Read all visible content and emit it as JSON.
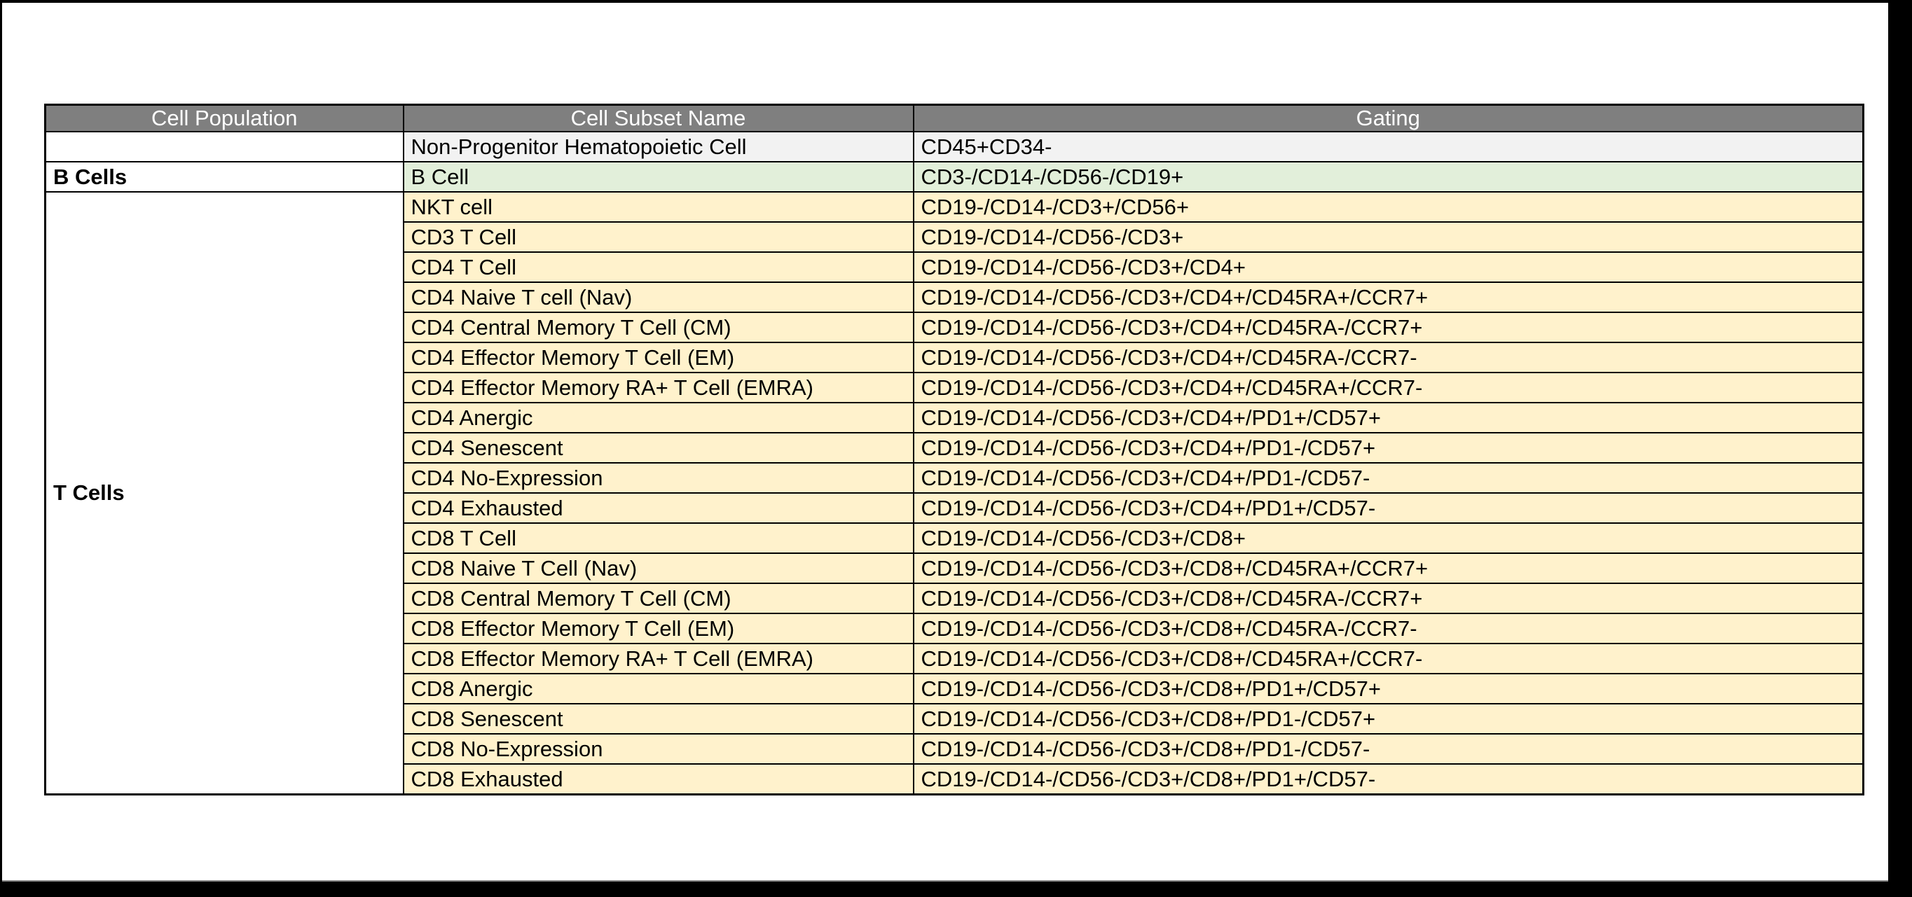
{
  "page": {
    "frame_color": "#000000",
    "paper_color": "#ffffff"
  },
  "table": {
    "columns": [
      "Cell Population",
      "Cell Subset Name",
      "Gating"
    ],
    "colors": {
      "header_bg": "#7f7f7f",
      "header_text": "#ffffff",
      "row_plain_bg": "#f2f2f2",
      "row_green_bg": "#e2efda",
      "row_yellow_bg": "#fff2cc",
      "border": "#000000"
    },
    "groups": [
      {
        "population": "",
        "theme": "plain",
        "rows": [
          {
            "subset": "Non-Progenitor Hematopoietic Cell",
            "gating": "CD45+CD34-"
          }
        ]
      },
      {
        "population": "B Cells",
        "theme": "green",
        "rows": [
          {
            "subset": "B Cell",
            "gating": "CD3-/CD14-/CD56-/CD19+"
          }
        ]
      },
      {
        "population": "T Cells",
        "theme": "yellow",
        "rows": [
          {
            "subset": "NKT cell",
            "gating": "CD19-/CD14-/CD3+/CD56+"
          },
          {
            "subset": "CD3 T Cell",
            "gating": "CD19-/CD14-/CD56-/CD3+"
          },
          {
            "subset": "CD4 T Cell",
            "gating": "CD19-/CD14-/CD56-/CD3+/CD4+"
          },
          {
            "subset": "CD4 Naive T cell (Nav)",
            "gating": "CD19-/CD14-/CD56-/CD3+/CD4+/CD45RA+/CCR7+"
          },
          {
            "subset": "CD4 Central Memory T Cell (CM)",
            "gating": "CD19-/CD14-/CD56-/CD3+/CD4+/CD45RA-/CCR7+"
          },
          {
            "subset": "CD4 Effector Memory T Cell (EM)",
            "gating": "CD19-/CD14-/CD56-/CD3+/CD4+/CD45RA-/CCR7-"
          },
          {
            "subset": "CD4 Effector Memory RA+ T Cell (EMRA)",
            "gating": "CD19-/CD14-/CD56-/CD3+/CD4+/CD45RA+/CCR7-"
          },
          {
            "subset": "CD4 Anergic",
            "gating": "CD19-/CD14-/CD56-/CD3+/CD4+/PD1+/CD57+"
          },
          {
            "subset": "CD4 Senescent",
            "gating": "CD19-/CD14-/CD56-/CD3+/CD4+/PD1-/CD57+"
          },
          {
            "subset": "CD4 No-Expression",
            "gating": "CD19-/CD14-/CD56-/CD3+/CD4+/PD1-/CD57-"
          },
          {
            "subset": "CD4 Exhausted",
            "gating": "CD19-/CD14-/CD56-/CD3+/CD4+/PD1+/CD57-"
          },
          {
            "subset": "CD8 T Cell",
            "gating": "CD19-/CD14-/CD56-/CD3+/CD8+"
          },
          {
            "subset": "CD8 Naive T Cell (Nav)",
            "gating": "CD19-/CD14-/CD56-/CD3+/CD8+/CD45RA+/CCR7+"
          },
          {
            "subset": "CD8 Central Memory T Cell (CM)",
            "gating": "CD19-/CD14-/CD56-/CD3+/CD8+/CD45RA-/CCR7+"
          },
          {
            "subset": "CD8 Effector Memory T Cell (EM)",
            "gating": "CD19-/CD14-/CD56-/CD3+/CD8+/CD45RA-/CCR7-"
          },
          {
            "subset": "CD8 Effector Memory RA+ T Cell (EMRA)",
            "gating": "CD19-/CD14-/CD56-/CD3+/CD8+/CD45RA+/CCR7-"
          },
          {
            "subset": "CD8 Anergic",
            "gating": "CD19-/CD14-/CD56-/CD3+/CD8+/PD1+/CD57+"
          },
          {
            "subset": "CD8 Senescent",
            "gating": "CD19-/CD14-/CD56-/CD3+/CD8+/PD1-/CD57+"
          },
          {
            "subset": "CD8 No-Expression",
            "gating": "CD19-/CD14-/CD56-/CD3+/CD8+/PD1-/CD57-"
          },
          {
            "subset": "CD8 Exhausted",
            "gating": "CD19-/CD14-/CD56-/CD3+/CD8+/PD1+/CD57-"
          }
        ]
      }
    ]
  }
}
